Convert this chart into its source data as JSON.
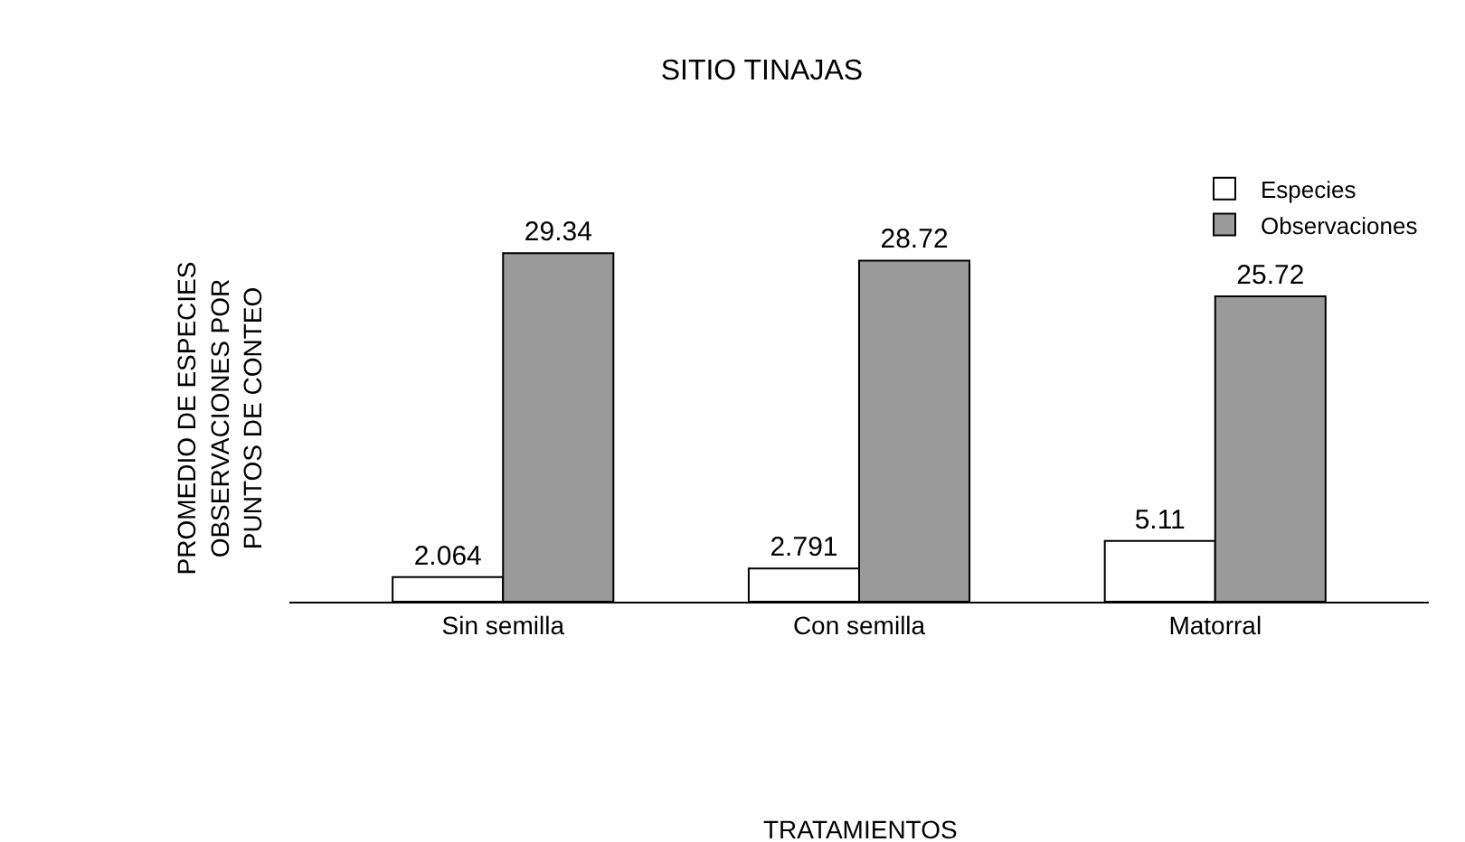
{
  "chart_data": {
    "type": "bar",
    "title": "SITIO TINAJAS",
    "annotations": [
      "TRATAMIENTOS"
    ],
    "ylabel": "PROMEDIO DE ESPECIES\nOBSERVACIONES POR\nPUNTOS DE CONTEO",
    "categories": [
      "Sin semilla",
      "Con semilla",
      "Matorral"
    ],
    "series": [
      {
        "name": "Especies",
        "color": "#ffffff",
        "values": [
          2.064,
          2.791,
          5.11
        ]
      },
      {
        "name": "Observaciones",
        "color": "#9a9a9a",
        "values": [
          29.34,
          28.72,
          25.72
        ]
      }
    ],
    "data_labels": true,
    "legend": "top right",
    "grid": false
  }
}
